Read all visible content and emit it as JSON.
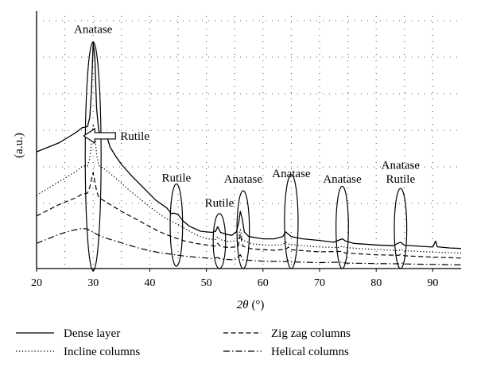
{
  "chart_data": {
    "type": "line",
    "title": "",
    "xlabel_var": "2θ",
    "xlabel_unit": "(°)",
    "ylabel": "(a.u.)",
    "xlim": [
      20,
      95
    ],
    "ylim": [
      0,
      100
    ],
    "xticks": [
      20,
      30,
      40,
      50,
      60,
      70,
      80,
      90
    ],
    "grid": true,
    "legend_position": "bottom",
    "series": [
      {
        "name": "Dense layer",
        "dash": "solid",
        "points": [
          [
            20,
            51
          ],
          [
            22,
            53
          ],
          [
            24,
            55
          ],
          [
            26,
            58
          ],
          [
            27,
            59.5
          ],
          [
            28,
            61.5
          ],
          [
            29,
            62
          ],
          [
            29.4,
            66
          ],
          [
            29.7,
            78
          ],
          [
            30,
            99
          ],
          [
            30.3,
            92
          ],
          [
            30.6,
            70
          ],
          [
            31,
            60
          ],
          [
            31.5,
            58
          ],
          [
            32,
            58.5
          ],
          [
            32.5,
            57
          ],
          [
            33,
            53
          ],
          [
            34,
            49
          ],
          [
            35,
            45.5
          ],
          [
            37,
            40
          ],
          [
            39,
            35
          ],
          [
            41,
            30
          ],
          [
            43,
            26.5
          ],
          [
            43.8,
            24
          ],
          [
            44.3,
            24.2
          ],
          [
            45,
            23.6
          ],
          [
            45.8,
            21
          ],
          [
            47,
            18.5
          ],
          [
            49,
            16.3
          ],
          [
            51,
            15.8
          ],
          [
            51.6,
            16.2
          ],
          [
            52,
            18.3
          ],
          [
            52.5,
            15.8
          ],
          [
            53.5,
            15
          ],
          [
            54.5,
            14.5
          ],
          [
            55.3,
            16
          ],
          [
            55.7,
            20
          ],
          [
            56,
            25
          ],
          [
            56.3,
            22
          ],
          [
            56.7,
            16
          ],
          [
            57.5,
            14
          ],
          [
            60,
            13
          ],
          [
            62,
            13
          ],
          [
            63.5,
            14
          ],
          [
            64,
            16
          ],
          [
            64.5,
            15
          ],
          [
            65,
            14
          ],
          [
            67,
            13
          ],
          [
            70,
            12.3
          ],
          [
            72.5,
            11.5
          ],
          [
            73.5,
            12.5
          ],
          [
            74,
            13
          ],
          [
            74.6,
            12
          ],
          [
            76,
            11
          ],
          [
            80,
            10.3
          ],
          [
            83,
            10
          ],
          [
            83.8,
            11
          ],
          [
            84.3,
            11.5
          ],
          [
            85,
            10.2
          ],
          [
            88,
            9.7
          ],
          [
            90,
            9.4
          ],
          [
            90.5,
            12
          ],
          [
            90.8,
            9.5
          ],
          [
            93,
            9
          ],
          [
            95,
            8.8
          ]
        ]
      },
      {
        "name": "Incline columns",
        "dash": "dot",
        "points": [
          [
            20,
            32
          ],
          [
            22,
            35
          ],
          [
            24,
            38
          ],
          [
            26,
            41
          ],
          [
            27,
            42.5
          ],
          [
            28,
            44.5
          ],
          [
            29,
            45
          ],
          [
            29.4,
            48
          ],
          [
            29.7,
            55
          ],
          [
            30,
            63
          ],
          [
            30.3,
            58
          ],
          [
            30.6,
            50
          ],
          [
            31,
            45
          ],
          [
            32,
            43.5
          ],
          [
            33,
            41.5
          ],
          [
            34,
            39.5
          ],
          [
            36,
            35
          ],
          [
            38,
            31
          ],
          [
            40,
            27
          ],
          [
            42,
            23.3
          ],
          [
            44,
            20.3
          ],
          [
            45,
            19.3
          ],
          [
            46,
            17.8
          ],
          [
            48,
            15
          ],
          [
            50,
            13
          ],
          [
            51.6,
            12.7
          ],
          [
            52,
            14
          ],
          [
            52.5,
            12.6
          ],
          [
            54,
            11.8
          ],
          [
            55.5,
            12.2
          ],
          [
            56,
            17
          ],
          [
            56.4,
            12.5
          ],
          [
            58,
            10.8
          ],
          [
            61,
            10.2
          ],
          [
            63.5,
            10.4
          ],
          [
            64,
            11.6
          ],
          [
            64.6,
            10.6
          ],
          [
            67,
            10
          ],
          [
            70,
            9.4
          ],
          [
            73.5,
            9.2
          ],
          [
            74,
            9.8
          ],
          [
            74.5,
            9.2
          ],
          [
            78,
            8.6
          ],
          [
            84,
            7.8
          ],
          [
            84.3,
            8.4
          ],
          [
            85,
            7.8
          ],
          [
            90,
            7.2
          ],
          [
            95,
            6.8
          ]
        ]
      },
      {
        "name": "Zig zag columns",
        "dash": "dash",
        "points": [
          [
            20,
            23
          ],
          [
            22,
            25.5
          ],
          [
            24,
            28
          ],
          [
            26,
            30
          ],
          [
            27,
            31
          ],
          [
            28,
            32.5
          ],
          [
            29,
            33
          ],
          [
            29.4,
            35.5
          ],
          [
            29.7,
            39
          ],
          [
            30,
            42
          ],
          [
            30.3,
            38
          ],
          [
            30.6,
            34
          ],
          [
            31,
            31
          ],
          [
            33,
            28
          ],
          [
            35,
            25
          ],
          [
            38,
            21
          ],
          [
            40,
            18.3
          ],
          [
            42,
            15.8
          ],
          [
            44,
            13.8
          ],
          [
            46,
            12.2
          ],
          [
            48,
            11
          ],
          [
            51,
            10
          ],
          [
            51.6,
            9.8
          ],
          [
            52,
            11
          ],
          [
            52.5,
            9.6
          ],
          [
            54,
            9.2
          ],
          [
            55.6,
            9.6
          ],
          [
            56,
            15
          ],
          [
            56.4,
            9.8
          ],
          [
            58,
            8.6
          ],
          [
            62,
            8
          ],
          [
            64,
            8.4
          ],
          [
            64.5,
            9.4
          ],
          [
            65,
            8.2
          ],
          [
            70,
            7.3
          ],
          [
            74,
            7.5
          ],
          [
            74.5,
            6.8
          ],
          [
            80,
            6
          ],
          [
            84,
            5.8
          ],
          [
            84.3,
            6.2
          ],
          [
            85,
            5.6
          ],
          [
            90,
            5
          ],
          [
            95,
            4.6
          ]
        ]
      },
      {
        "name": "Helical columns",
        "dash": "dashdot",
        "points": [
          [
            20,
            11
          ],
          [
            22,
            13
          ],
          [
            24,
            15
          ],
          [
            26,
            16.5
          ],
          [
            27,
            17
          ],
          [
            28,
            17.5
          ],
          [
            29,
            17.3
          ],
          [
            29.5,
            16.5
          ],
          [
            30,
            16
          ],
          [
            30.6,
            15
          ],
          [
            32,
            13.5
          ],
          [
            34,
            12
          ],
          [
            36,
            10.5
          ],
          [
            38,
            9
          ],
          [
            40,
            7.8
          ],
          [
            42,
            6.8
          ],
          [
            44,
            6.2
          ],
          [
            46,
            5.5
          ],
          [
            48,
            5
          ],
          [
            51,
            4.4
          ],
          [
            52,
            4.8
          ],
          [
            52.5,
            4.2
          ],
          [
            55,
            3.8
          ],
          [
            56,
            6
          ],
          [
            56.5,
            3.8
          ],
          [
            60,
            3.2
          ],
          [
            64,
            3
          ],
          [
            64.5,
            3.6
          ],
          [
            65,
            2.9
          ],
          [
            70,
            2.6
          ],
          [
            74,
            2.8
          ],
          [
            74.5,
            2.4
          ],
          [
            80,
            2.2
          ],
          [
            84,
            2.1
          ],
          [
            84.5,
            2.4
          ],
          [
            85,
            2
          ],
          [
            90,
            1.8
          ],
          [
            95,
            1.6
          ]
        ]
      }
    ],
    "annotations": [
      {
        "text": "Anatase",
        "x": 30,
        "y": 103
      },
      {
        "text": "Rutile",
        "x": 34.5,
        "y": 58,
        "arrow": true
      },
      {
        "text": "Rutile",
        "x": 44.7,
        "y": 38
      },
      {
        "text": "Rutile",
        "x": 52.3,
        "y": 27
      },
      {
        "text": "Anatase",
        "x": 56.5,
        "y": 37.5
      },
      {
        "text": "Anatase",
        "x": 65,
        "y": 40
      },
      {
        "text": "Anatase",
        "x": 74,
        "y": 37.5
      },
      {
        "text": "Anatase",
        "x": 84.3,
        "y": 43.5
      },
      {
        "text": "Rutile",
        "x": 84.3,
        "y": 37.5
      }
    ],
    "ellipses": [
      {
        "cx": 30,
        "cy": 49,
        "rx": 1.4,
        "ry": 50
      },
      {
        "cx": 44.7,
        "cy": 19,
        "rx": 1.1,
        "ry": 18
      },
      {
        "cx": 52.3,
        "cy": 12,
        "rx": 1.1,
        "ry": 12
      },
      {
        "cx": 56.5,
        "cy": 17,
        "rx": 1.1,
        "ry": 17
      },
      {
        "cx": 65,
        "cy": 20.5,
        "rx": 1.2,
        "ry": 20.5
      },
      {
        "cx": 74,
        "cy": 18,
        "rx": 1.1,
        "ry": 18
      },
      {
        "cx": 84.3,
        "cy": 17.5,
        "rx": 1.1,
        "ry": 17.5
      }
    ]
  }
}
